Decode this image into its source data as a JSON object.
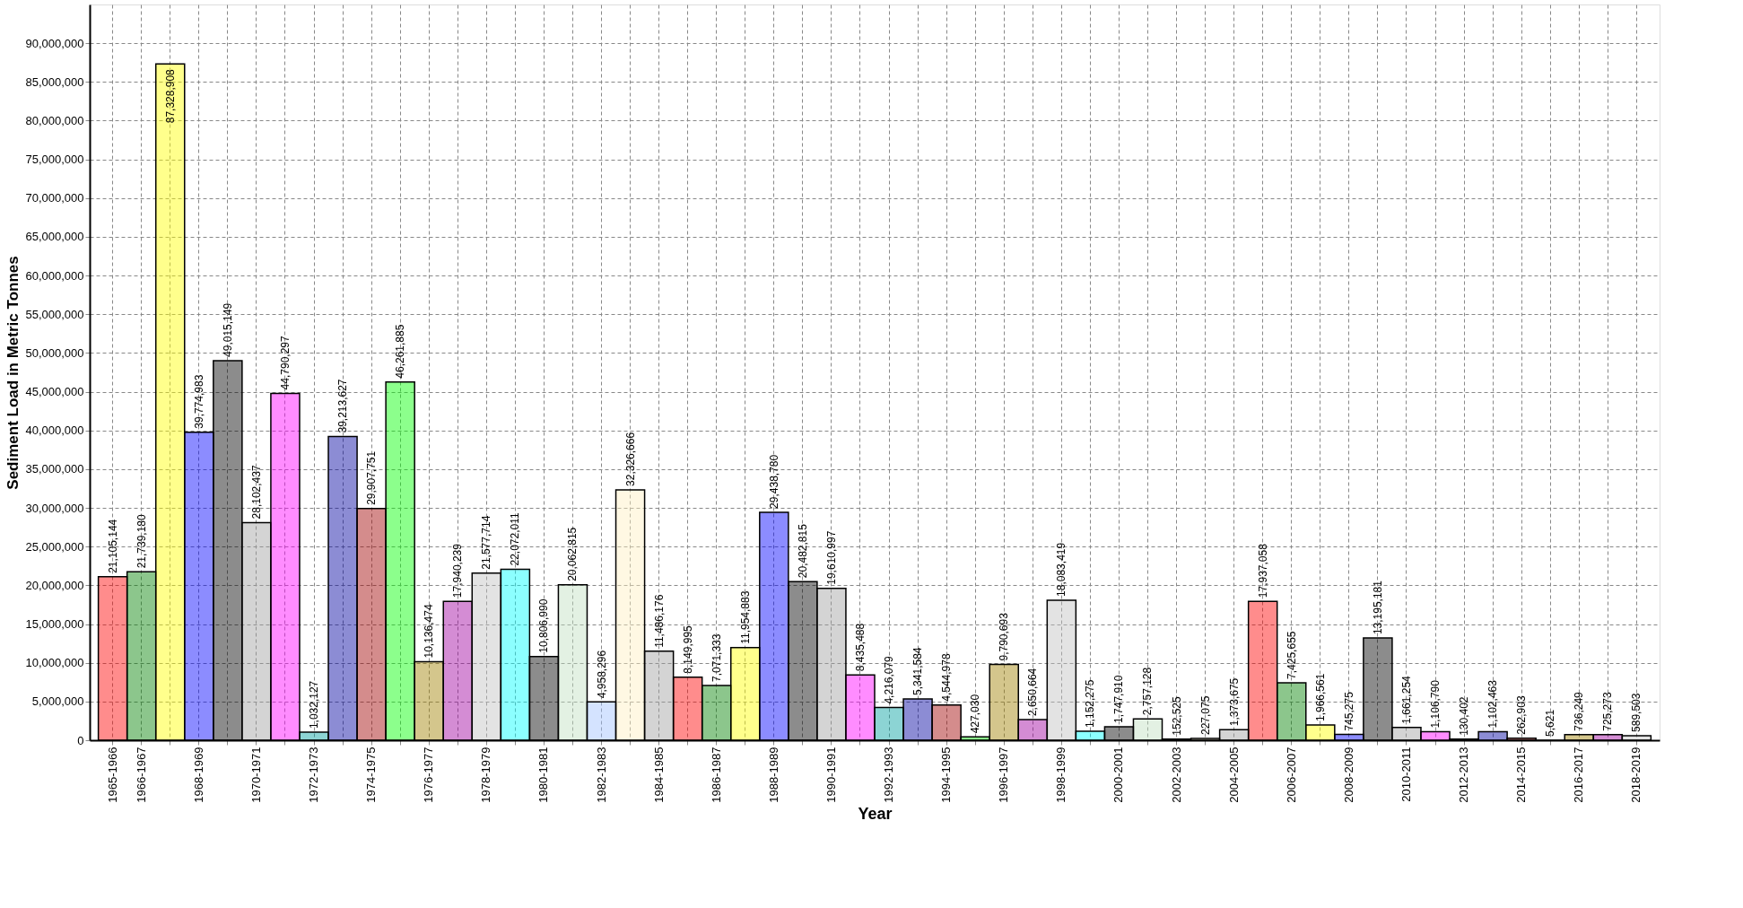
{
  "chart_data": {
    "type": "bar",
    "xlabel": "Year",
    "ylabel": "Sediment Load in Metric Tonnes",
    "categories": [
      "1965-1966",
      "1966-1967",
      null,
      "1968-1969",
      null,
      "1970-1971",
      null,
      "1972-1973",
      null,
      "1974-1975",
      null,
      "1976-1977",
      null,
      "1978-1979",
      null,
      "1980-1981",
      null,
      "1982-1983",
      null,
      "1984-1985",
      null,
      "1986-1987",
      null,
      "1988-1989",
      null,
      "1990-1991",
      null,
      "1992-1993",
      null,
      "1994-1995",
      null,
      "1996-1997",
      null,
      "1998-1999",
      null,
      "2000-2001",
      null,
      "2002-2003",
      null,
      "2004-2005",
      null,
      "2006-2007",
      null,
      "2008-2009",
      null,
      "2010-2011",
      null,
      "2012-2013",
      null,
      "2014-2015",
      null,
      "2016-2017",
      null,
      "2018-2019"
    ],
    "values": [
      21105144,
      21739180,
      87328908,
      39774983,
      49015149,
      28102437,
      44790297,
      1032127,
      39213627,
      29907751,
      46261885,
      10136474,
      17940239,
      21577714,
      22072011,
      10806990,
      20062815,
      4958296,
      32326666,
      11486176,
      8149995,
      7071333,
      11954883,
      29438780,
      20482815,
      19610997,
      8435488,
      4216079,
      5341584,
      4544978,
      427030,
      9790693,
      2650664,
      18083419,
      1152275,
      1747910,
      2757128,
      152525,
      227075,
      1373675,
      17937058,
      7425655,
      1966561,
      745275,
      13195181,
      1661254,
      1106790,
      130402,
      1102463,
      262903,
      5621,
      736249,
      725273,
      589503
    ],
    "value_labels": [
      "21,105,144",
      "21,739,180",
      "87,328,908",
      "39,774,983",
      "49,015,149",
      "28,102,437",
      "44,790,297",
      "1,032,127",
      "39,213,627",
      "29,907,751",
      "46,261,885",
      "10,136,474",
      "17,940,239",
      "21,577,714",
      "22,072,011",
      "10,806,990",
      "20,062,815",
      "4,958,296",
      "32,326,666",
      "11,486,176",
      "8,149,995",
      "7,071,333",
      "11,954,883",
      "29,438,780",
      "20,482,815",
      "19,610,997",
      "8,435,488",
      "4,216,079",
      "5,341,584",
      "4,544,978",
      "427,030",
      "9,790,693",
      "2,650,664",
      "18,083,419",
      "1,152,275",
      "1,747,910",
      "2,757,128",
      "152,525",
      "227,075",
      "1,373,675",
      "17,937,058",
      "7,425,655",
      "1,966,561",
      "745,275",
      "13,195,181",
      "1,661,254",
      "1,106,790",
      "130,402",
      "1,102,463",
      "262,903",
      "5,621",
      "736,249",
      "725,273",
      "589,503"
    ],
    "colors": [
      "#ff0000",
      "#008000",
      "#ffff00",
      "#0000ff",
      "#000000",
      "#a0a0a0",
      "#ff00ff",
      "#00a0a0",
      "#0000a0",
      "#a00000",
      "#00ff00",
      "#a08000",
      "#a000a0",
      "#c0c0c0",
      "#00ffff",
      "#000000",
      "#c0e0c0",
      "#a0c0ff",
      "#fff0c0",
      "#a0a0a0",
      "#ff0000",
      "#008000",
      "#ffff00",
      "#0000ff",
      "#000000",
      "#a0a0a0",
      "#ff00ff",
      "#00a0a0",
      "#0000a0",
      "#a00000",
      "#00ff00",
      "#a08000",
      "#a000a0",
      "#c0c0c0",
      "#00ffff",
      "#000000",
      "#c0e0c0",
      "#a0c0ff",
      "#fff0c0",
      "#a0a0a0",
      "#ff0000",
      "#008000",
      "#ffff00",
      "#0000ff",
      "#000000",
      "#a0a0a0",
      "#ff00ff",
      "#00a0a0",
      "#0000a0",
      "#a00000",
      "#00ff00",
      "#a08000",
      "#a000a0",
      "#c0c0c0"
    ],
    "ylim": [
      0,
      95000000
    ],
    "yticks": [
      0,
      {
        "value": 5000000,
        "label": "5,000,000"
      },
      {
        "value": 10000000,
        "label": "10,000,000"
      },
      {
        "value": 15000000,
        "label": "15,000,000"
      },
      {
        "value": 20000000,
        "label": "20,000,000"
      },
      {
        "value": 25000000,
        "label": "25,000,000"
      },
      {
        "value": 30000000,
        "label": "30,000,000"
      },
      {
        "value": 35000000,
        "label": "35,000,000"
      },
      {
        "value": 40000000,
        "label": "40,000,000"
      },
      {
        "value": 45000000,
        "label": "45,000,000"
      },
      {
        "value": 50000000,
        "label": "50,000,000"
      },
      {
        "value": 55000000,
        "label": "55,000,000"
      },
      {
        "value": 60000000,
        "label": "60,000,000"
      },
      {
        "value": 65000000,
        "label": "65,000,000"
      },
      {
        "value": 70000000,
        "label": "70,000,000"
      },
      {
        "value": 75000000,
        "label": "75,000,000"
      },
      {
        "value": 80000000,
        "label": "80,000,000"
      },
      {
        "value": 85000000,
        "label": "85,000,000"
      },
      {
        "value": 90000000,
        "label": "90,000,000"
      }
    ],
    "grid": true
  }
}
